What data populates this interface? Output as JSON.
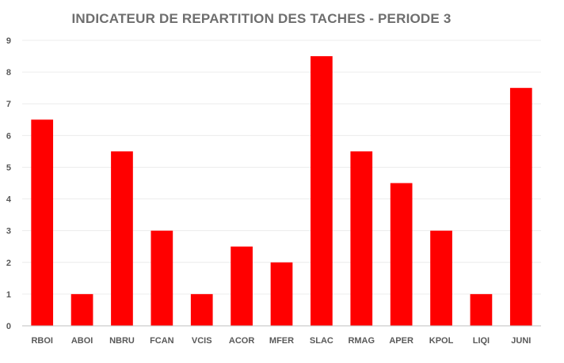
{
  "chart_data": {
    "type": "bar",
    "title": "INDICATEUR DE REPARTITION DES TACHES - PERIODE 3",
    "xlabel": "",
    "ylabel": "",
    "categories": [
      "RBOI",
      "ABOI",
      "NBRU",
      "FCAN",
      "VCIS",
      "ACOR",
      "MFER",
      "SLAC",
      "RMAG",
      "APER",
      "KPOL",
      "LIQI",
      "JUNI"
    ],
    "values": [
      6.5,
      1,
      5.5,
      3,
      1,
      2.5,
      2,
      8.5,
      5.5,
      4.5,
      3,
      1,
      7.5
    ],
    "ylim": [
      0,
      9
    ],
    "yticks": [
      0,
      1,
      2,
      3,
      4,
      5,
      6,
      7,
      8,
      9
    ],
    "grid": true,
    "legend": "none",
    "bar_color": "#ff0000",
    "grid_color": "#ececec",
    "axis_color": "#bfbfbf"
  }
}
